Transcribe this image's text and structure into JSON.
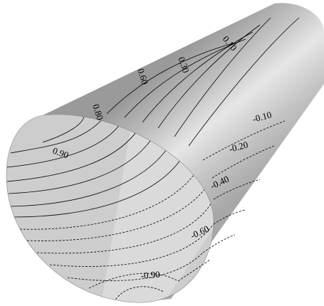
{
  "contour_labels": [
    "0.10",
    "0.30",
    "0.60",
    "0.80",
    "0.90",
    "-0.10",
    "-0.20",
    "-0.40",
    "-0.60",
    "-0.90"
  ]
}
